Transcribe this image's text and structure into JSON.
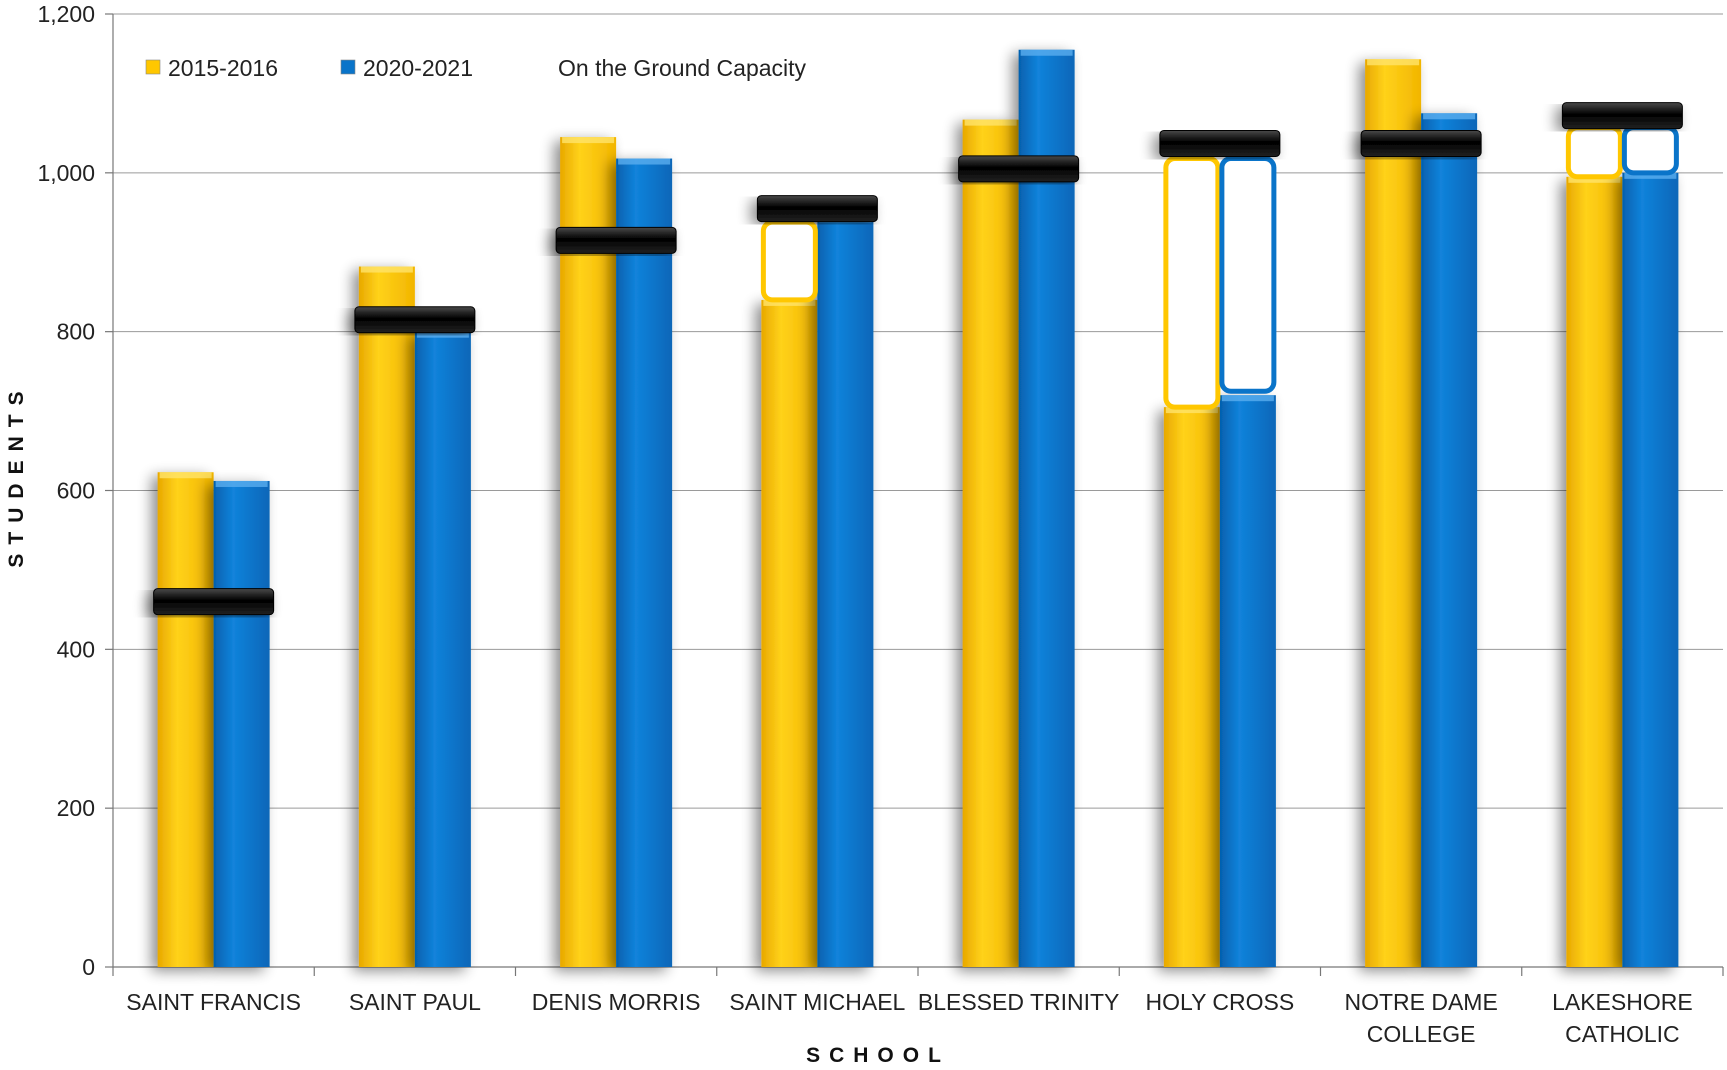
{
  "chart_data": {
    "type": "bar",
    "title": "",
    "xlabel": "SCHOOL",
    "ylabel": "STUDENTS",
    "ylim": [
      0,
      1200
    ],
    "yticks": [
      0,
      200,
      400,
      600,
      800,
      1000,
      1200
    ],
    "ytick_labels": [
      "0",
      "200",
      "400",
      "600",
      "800",
      "1,000",
      "1,200"
    ],
    "grid": true,
    "legend_position": "top-left",
    "categories": [
      [
        "SAINT FRANCIS"
      ],
      [
        "SAINT PAUL"
      ],
      [
        "DENIS MORRIS"
      ],
      [
        "SAINT MICHAEL"
      ],
      [
        "BLESSED TRINITY"
      ],
      [
        "HOLY CROSS"
      ],
      [
        "NOTRE DAME",
        "COLLEGE"
      ],
      [
        "LAKESHORE",
        "CATHOLIC"
      ]
    ],
    "series": [
      {
        "name": "2015-2016",
        "color": "#FFC700",
        "values": [
          623,
          882,
          1045,
          840,
          1067,
          705,
          1143,
          995
        ]
      },
      {
        "name": "2020-2021",
        "color": "#0A74C9",
        "values": [
          612,
          800,
          1018,
          945,
          1155,
          720,
          1075,
          1000
        ]
      }
    ],
    "capacity": {
      "name": "On the Ground Capacity",
      "color": "#111111",
      "values": [
        460,
        815,
        915,
        955,
        1005,
        1037,
        1037,
        1072
      ]
    },
    "highlight_boxes": [
      {
        "category_index": 3,
        "series_index": 0,
        "from": 840,
        "to": 938
      },
      {
        "category_index": 5,
        "series_index": 0,
        "from": 705,
        "to": 1018
      },
      {
        "category_index": 5,
        "series_index": 1,
        "from": 725,
        "to": 1018
      },
      {
        "category_index": 7,
        "series_index": 0,
        "from": 995,
        "to": 1057
      },
      {
        "category_index": 7,
        "series_index": 1,
        "from": 1000,
        "to": 1057
      }
    ]
  }
}
